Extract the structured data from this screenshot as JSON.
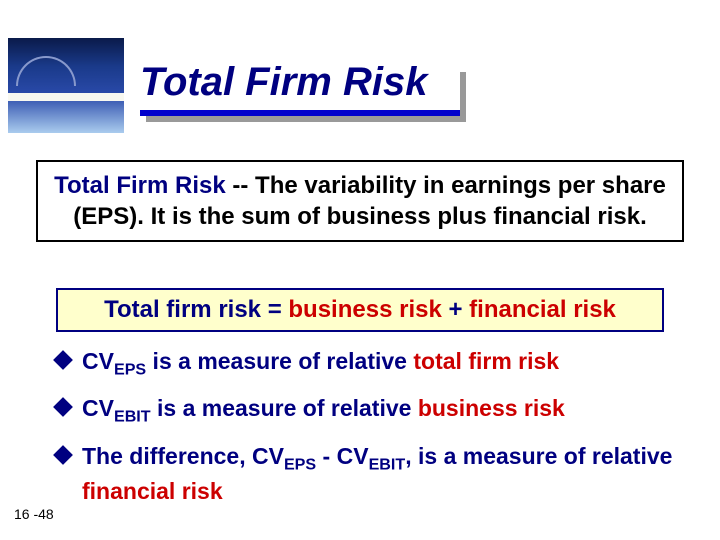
{
  "colors": {
    "navy": "#000080",
    "red": "#cc0000",
    "formula_bg": "#ffffcc",
    "black": "#000000"
  },
  "title": "Total Firm Risk",
  "definition": {
    "lead_blue": "Total Firm Risk",
    "rest": " -- The variability in earnings per share (EPS).  It is the sum of business plus financial risk."
  },
  "formula": {
    "p1": "Total firm risk",
    "eq": " = ",
    "p2": "business risk",
    "plus": " + ",
    "p3": "financial risk"
  },
  "bullets": [
    {
      "cv": "CV",
      "sub": "EPS",
      "mid": " is a measure of relative ",
      "risk": "total firm risk"
    },
    {
      "cv": "CV",
      "sub": "EBIT",
      "mid": " is a measure of relative ",
      "risk": "business risk"
    }
  ],
  "bullet3": {
    "p1": "The difference, ",
    "cv1": "CV",
    "sub1": "EPS",
    "dash": " - ",
    "cv2": "CV",
    "sub2": "EBIT",
    "p2": ", is a measure of relative ",
    "risk": "financial risk"
  },
  "slide_number": "16 -48"
}
